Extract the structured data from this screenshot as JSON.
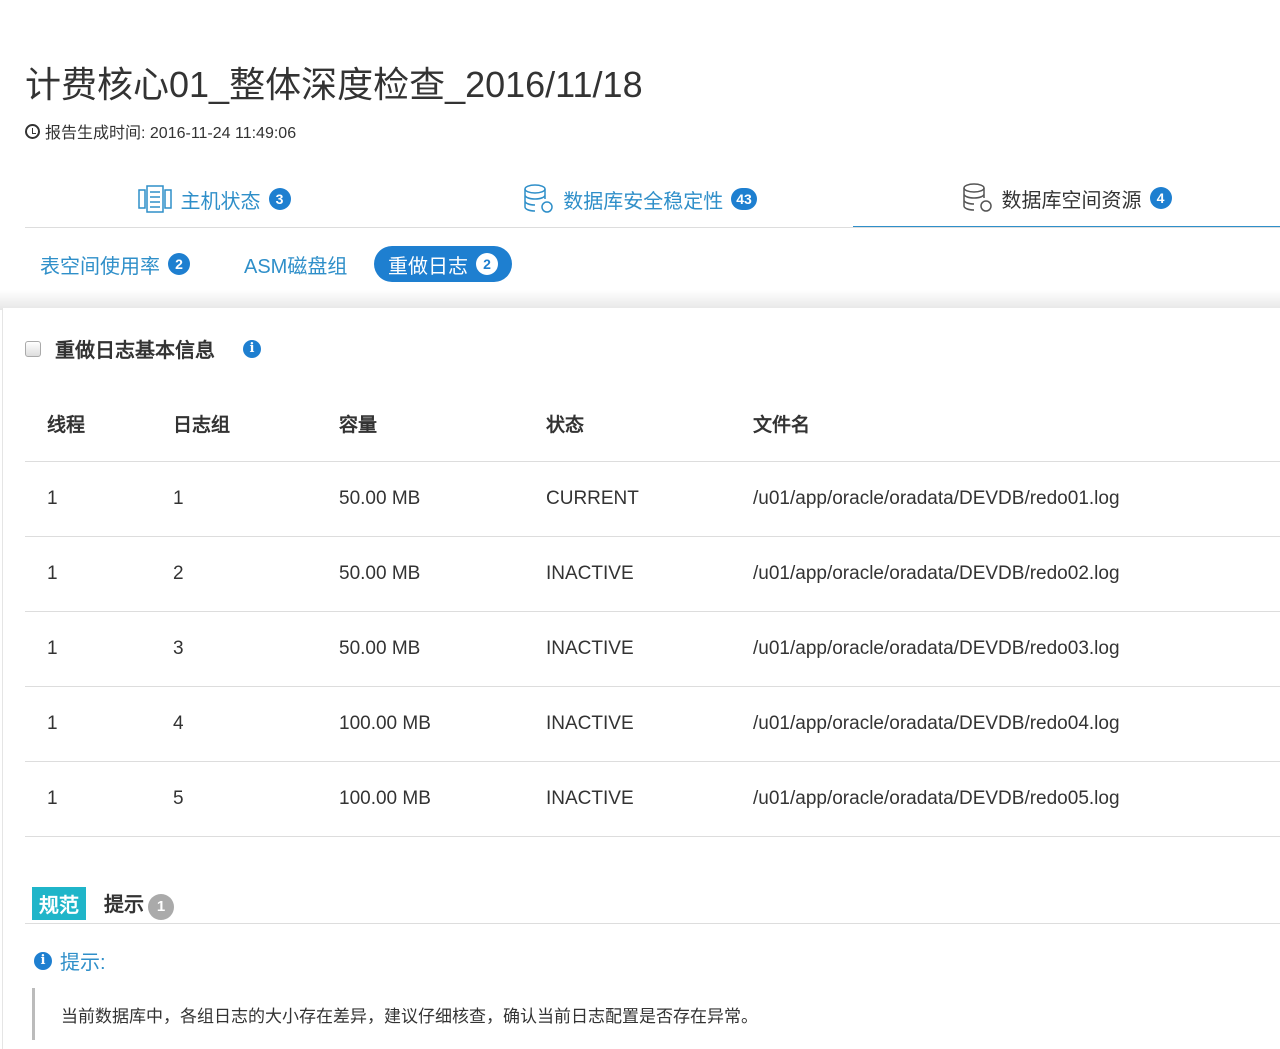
{
  "title": "计费核心01_整体深度检查_2016/11/18",
  "generated": "报告生成时间: 2016-11-24 11:49:06",
  "top_tabs": [
    {
      "label": "主机状态",
      "count": "3",
      "icon": "server-icon"
    },
    {
      "label": "数据库安全稳定性",
      "count": "43",
      "icon": "database-icon"
    },
    {
      "label": "数据库空间资源",
      "count": "4",
      "icon": "database-icon",
      "active": true
    }
  ],
  "sub_tabs": [
    {
      "label": "表空间使用率",
      "count": "2"
    },
    {
      "label": "ASM磁盘组"
    },
    {
      "label": "重做日志",
      "count": "2",
      "active": true
    }
  ],
  "section": {
    "title": "重做日志基本信息"
  },
  "table": {
    "headers": [
      "线程",
      "日志组",
      "容量",
      "状态",
      "文件名"
    ],
    "rows": [
      [
        "1",
        "1",
        "50.00 MB",
        "CURRENT",
        "/u01/app/oracle/oradata/DEVDB/redo01.log"
      ],
      [
        "1",
        "2",
        "50.00 MB",
        "INACTIVE",
        "/u01/app/oracle/oradata/DEVDB/redo02.log"
      ],
      [
        "1",
        "3",
        "50.00 MB",
        "INACTIVE",
        "/u01/app/oracle/oradata/DEVDB/redo03.log"
      ],
      [
        "1",
        "4",
        "100.00 MB",
        "INACTIVE",
        "/u01/app/oracle/oradata/DEVDB/redo04.log"
      ],
      [
        "1",
        "5",
        "100.00 MB",
        "INACTIVE",
        "/u01/app/oracle/oradata/DEVDB/redo05.log"
      ]
    ]
  },
  "footer": {
    "tag": "规范",
    "tab": "提示",
    "count": "1",
    "tip_label": "提示:",
    "tip_text": "当前数据库中，各组日志的大小存在差异，建议仔细核查，确认当前日志配置是否存在异常。"
  },
  "colors": {
    "accent": "#1e7fd0",
    "link": "#2f8fc9",
    "tag": "#1fb5c9"
  }
}
